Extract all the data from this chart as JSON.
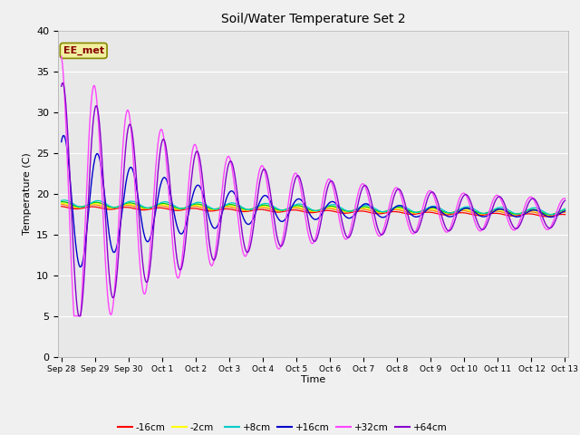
{
  "title": "Soil/Water Temperature Set 2",
  "xlabel": "Time",
  "ylabel": "Temperature (C)",
  "annotation": "EE_met",
  "ylim": [
    0,
    40
  ],
  "background_color": "#e8e8e8",
  "fig_facecolor": "#f0f0f0",
  "series_colors": {
    "-16cm": "#ff0000",
    "-8cm": "#ff8800",
    "-2cm": "#ffff00",
    "+2cm": "#00cc00",
    "+8cm": "#00cccc",
    "+16cm": "#0000cc",
    "+32cm": "#ff44ff",
    "+64cm": "#8800cc"
  },
  "tick_labels": [
    "Sep 28",
    "Sep 29",
    "Sep 30",
    "Oct 1",
    "Oct 2",
    "Oct 3",
    "Oct 4",
    "Oct 5",
    "Oct 6",
    "Oct 7",
    "Oct 8",
    "Oct 9",
    "Oct 10",
    "Oct 11",
    "Oct 12",
    "Oct 13"
  ]
}
